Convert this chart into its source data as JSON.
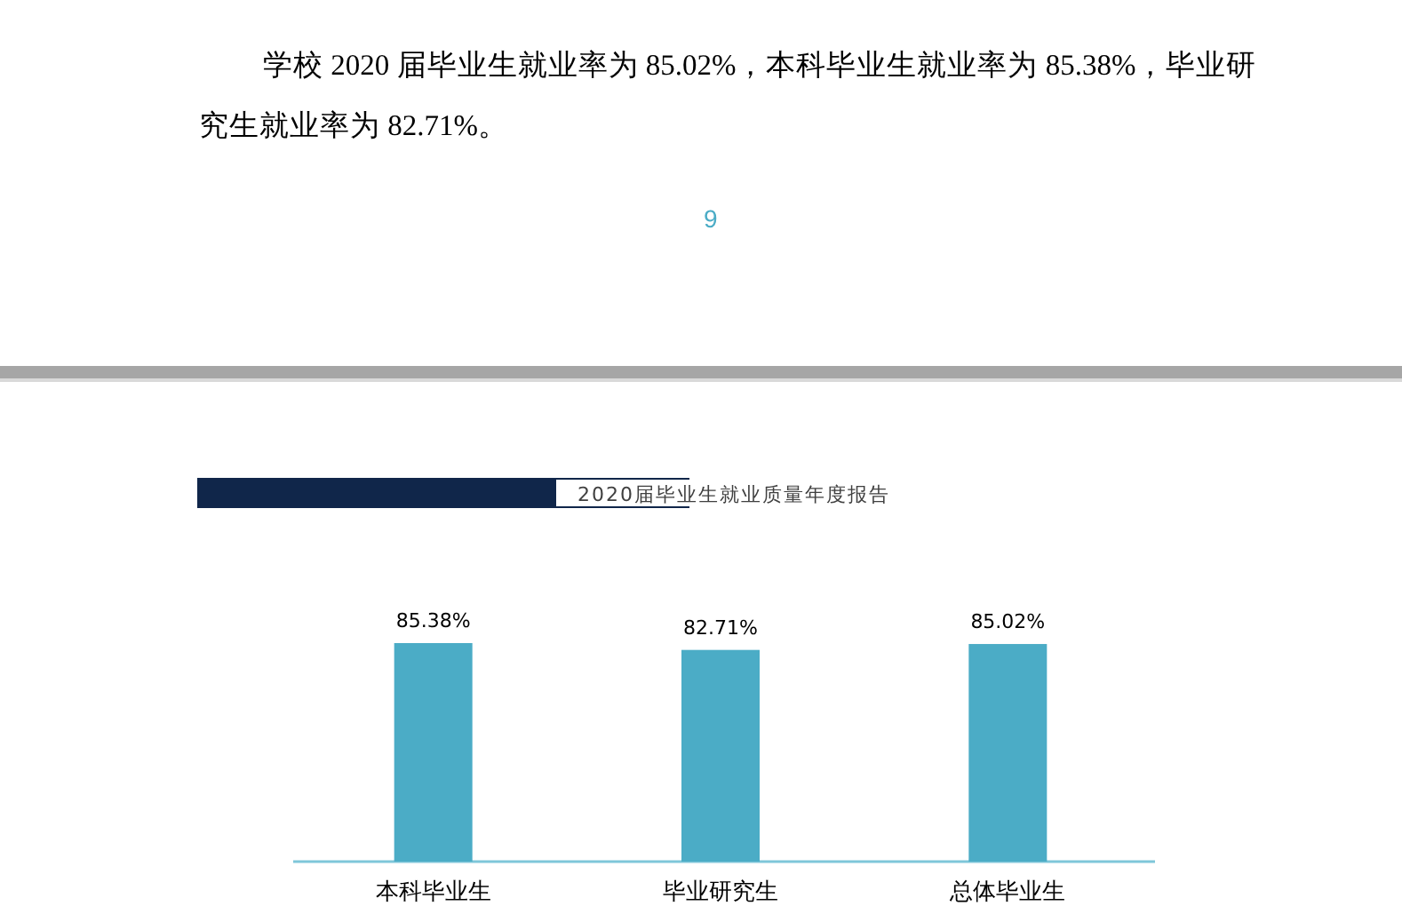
{
  "chart_data": {
    "type": "bar",
    "title": "2020届毕业生就业质量年度报告",
    "categories": [
      "本科毕业生",
      "毕业研究生",
      "总体毕业生"
    ],
    "values": [
      85.38,
      82.71,
      85.02
    ],
    "value_labels": [
      "85.38%",
      "82.71%",
      "85.02%"
    ],
    "color": "#4bacc6",
    "annotations": [
      "学校 2020 届毕业生就业率为 85.02%，本科毕业生就业率为 85.38%，毕业研究生就业率为 82.71%。",
      "9"
    ]
  }
}
